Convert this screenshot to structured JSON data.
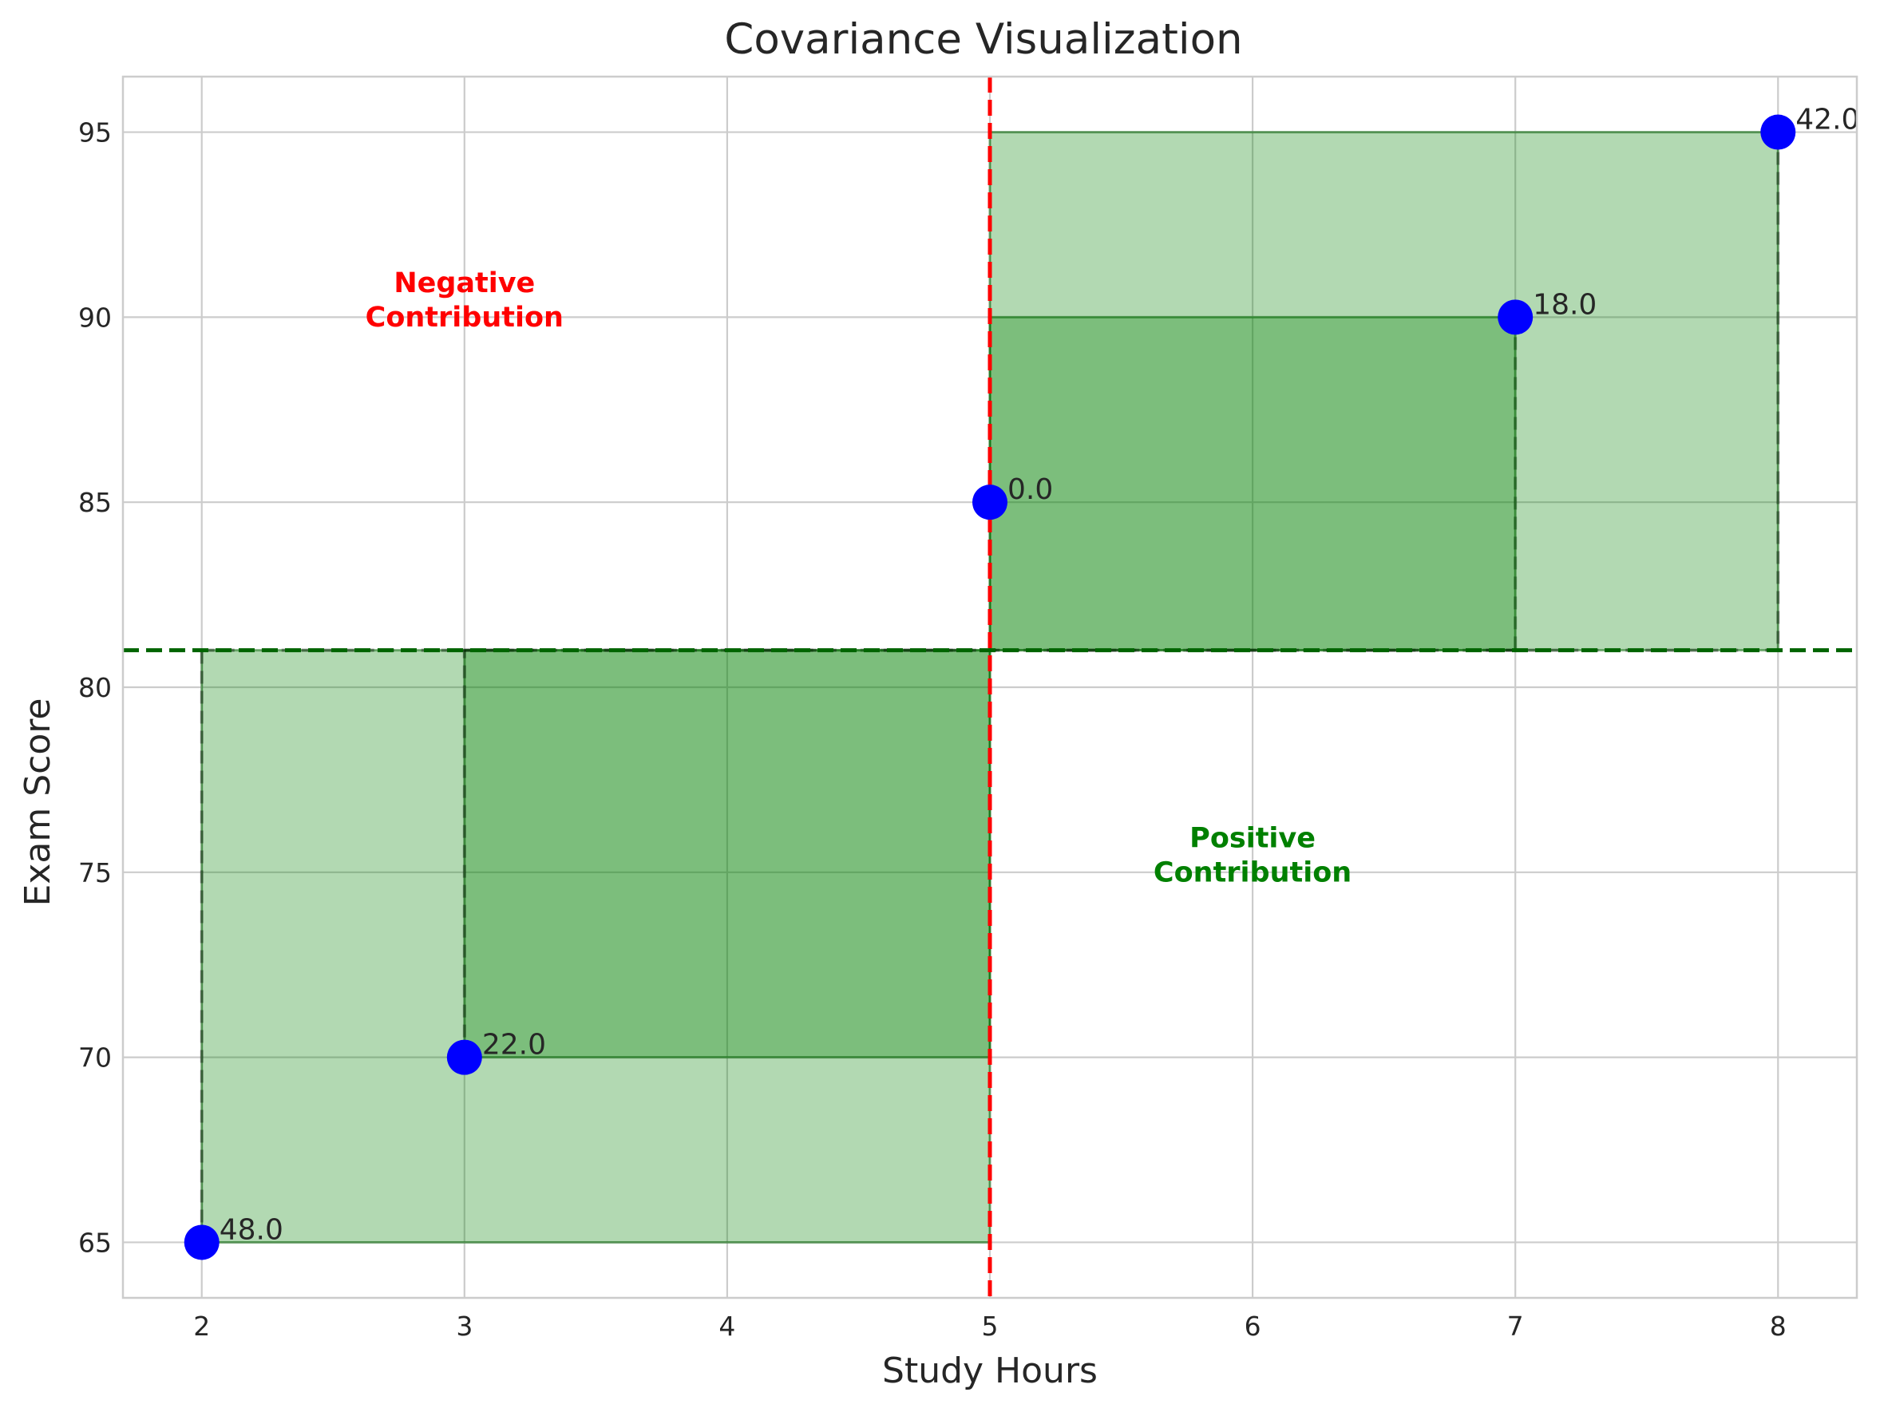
{
  "chart_data": {
    "type": "scatter",
    "title": "Covariance Visualization",
    "xlabel": "Study Hours",
    "ylabel": "Exam Score",
    "xlim": [
      1.7,
      8.3
    ],
    "ylim": [
      63.5,
      96.5
    ],
    "xticks": [
      2,
      3,
      4,
      5,
      6,
      7,
      8
    ],
    "yticks": [
      65,
      70,
      75,
      80,
      85,
      90,
      95
    ],
    "grid": true,
    "x_mean": 5,
    "y_mean": 81,
    "points": [
      {
        "x": 2,
        "y": 65,
        "label": "48.0"
      },
      {
        "x": 3,
        "y": 70,
        "label": "22.0"
      },
      {
        "x": 5,
        "y": 85,
        "label": "0.0"
      },
      {
        "x": 7,
        "y": 90,
        "label": "18.0"
      },
      {
        "x": 8,
        "y": 95,
        "label": "42.0"
      }
    ],
    "annotations": [
      {
        "lines": [
          "Negative",
          "Contribution"
        ],
        "x": 3,
        "y": 90.5,
        "color": "#ff0000"
      },
      {
        "lines": [
          "Positive",
          "Contribution"
        ],
        "x": 6,
        "y": 75.5,
        "color": "#008000"
      }
    ],
    "colors": {
      "points": "#0000ff",
      "rect_fill": "#008000",
      "rect_edge": "#006400",
      "x_mean_line": "#ff0000",
      "y_mean_line": "#006400"
    }
  }
}
